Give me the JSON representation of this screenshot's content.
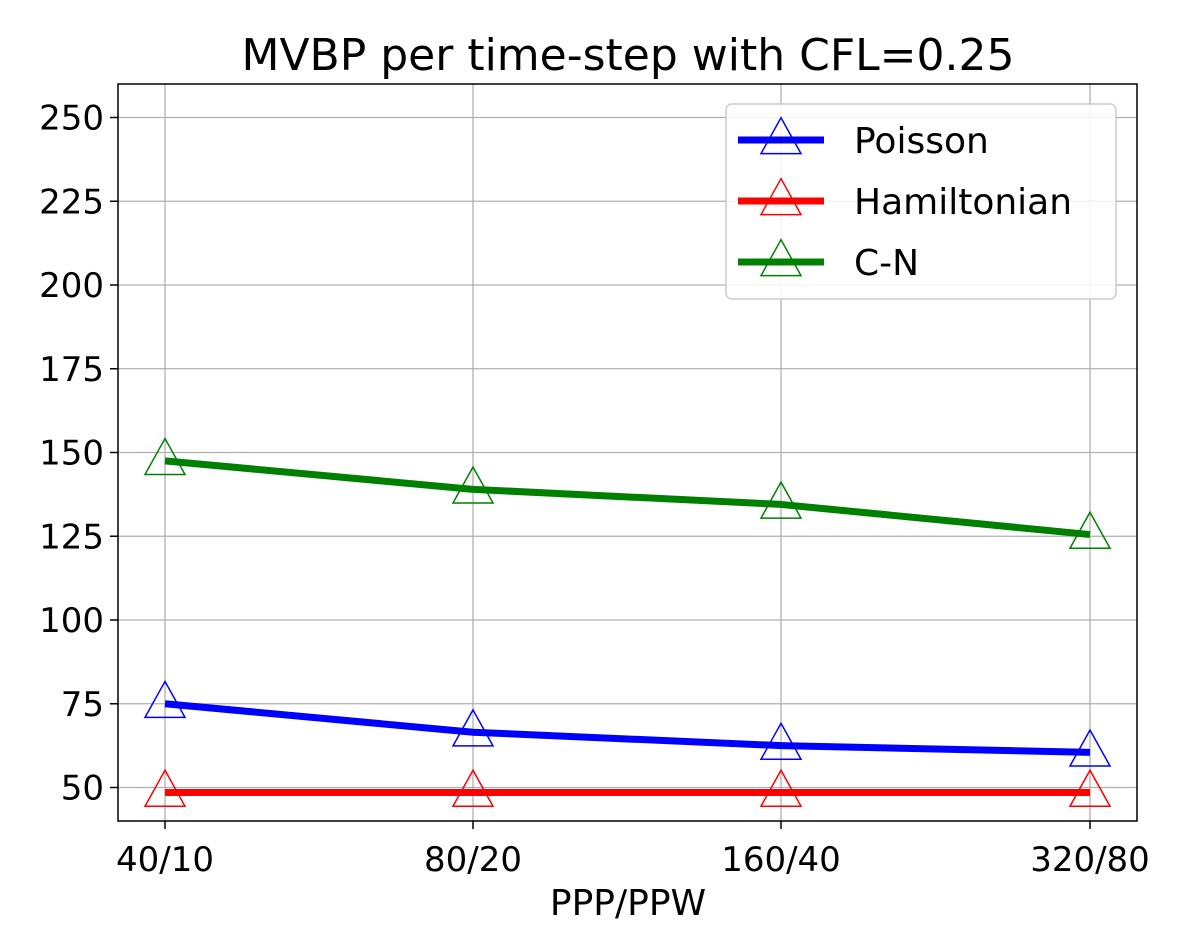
{
  "chart_data": {
    "type": "line",
    "title": "MVBP per time-step with CFL=0.25",
    "xlabel": "PPP/PPW",
    "ylabel": "",
    "categories": [
      "40/10",
      "80/20",
      "160/40",
      "320/80"
    ],
    "ylim": [
      40,
      260
    ],
    "yticks": [
      50,
      75,
      100,
      125,
      150,
      175,
      200,
      225,
      250
    ],
    "grid": true,
    "legend_position": "top-right",
    "marker": "triangle-hollow",
    "series": [
      {
        "name": "Poisson",
        "color": "#0000ff",
        "values": [
          75,
          66.5,
          62.5,
          60.5
        ]
      },
      {
        "name": "Hamiltonian",
        "color": "#ff0000",
        "values": [
          48.5,
          48.5,
          48.5,
          48.5
        ]
      },
      {
        "name": "C-N",
        "color": "#008000",
        "values": [
          147.5,
          139,
          134.5,
          125.5
        ]
      }
    ]
  }
}
